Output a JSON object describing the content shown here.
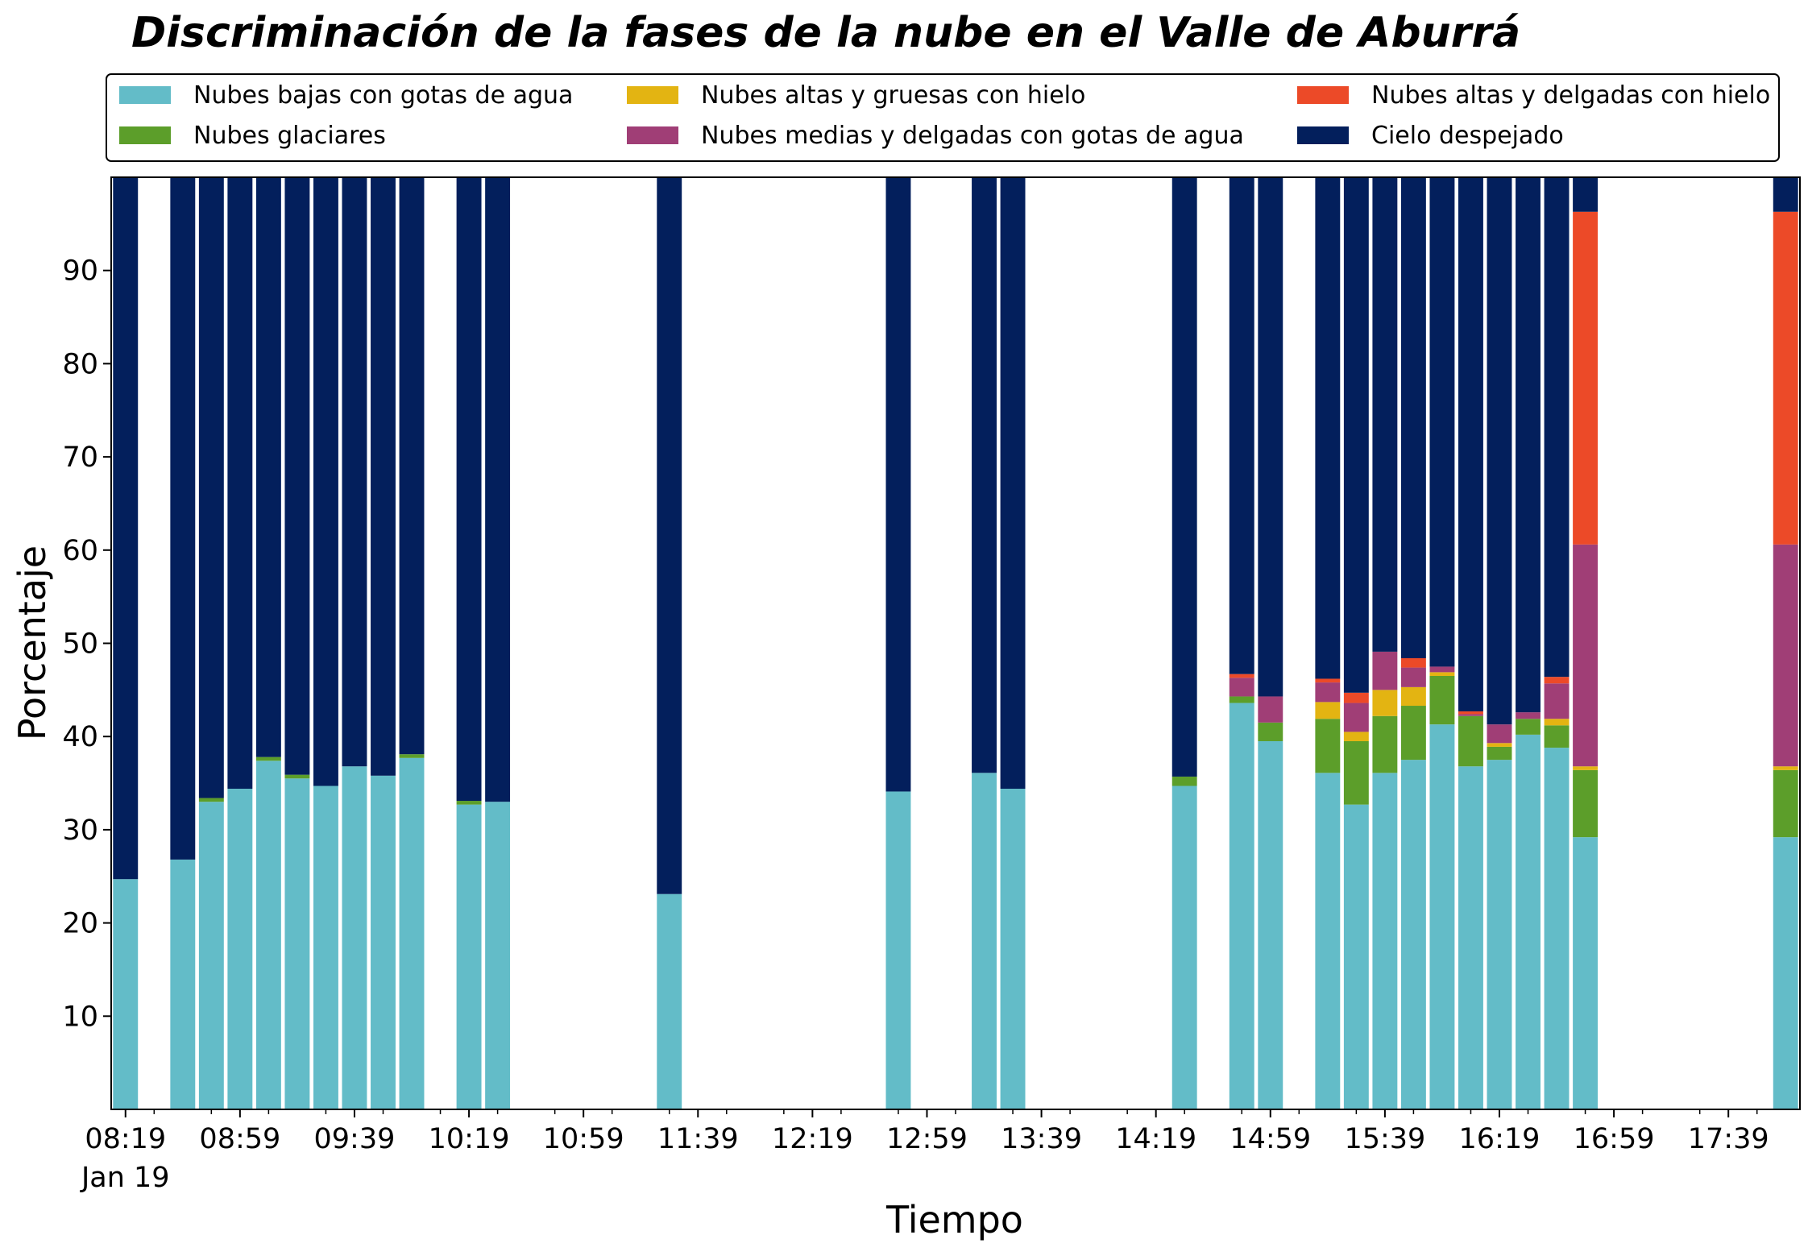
{
  "chart_data": {
    "type": "bar",
    "stacked": true,
    "title": "Discriminación de la fases de la nube en el Valle de Aburrá",
    "xlabel": "Tiempo",
    "ylabel": "Porcentaje",
    "ylim": [
      0,
      100
    ],
    "yticks": [
      10,
      20,
      30,
      40,
      50,
      60,
      70,
      80,
      90
    ],
    "xlim": [
      0,
      59
    ],
    "xtick_labels": [
      {
        "pos": 0,
        "label": "08:19"
      },
      {
        "pos": 4,
        "label": "08:59"
      },
      {
        "pos": 8,
        "label": "09:39"
      },
      {
        "pos": 12,
        "label": "10:19"
      },
      {
        "pos": 16,
        "label": "10:59"
      },
      {
        "pos": 20,
        "label": "11:39"
      },
      {
        "pos": 24,
        "label": "12:19"
      },
      {
        "pos": 28,
        "label": "12:59"
      },
      {
        "pos": 32,
        "label": "13:39"
      },
      {
        "pos": 36,
        "label": "14:19"
      },
      {
        "pos": 40,
        "label": "14:59"
      },
      {
        "pos": 44,
        "label": "15:39"
      },
      {
        "pos": 48,
        "label": "16:19"
      },
      {
        "pos": 52,
        "label": "16:59"
      },
      {
        "pos": 56,
        "label": "17:39"
      }
    ],
    "x_date_label": "Jan 19",
    "grid": false,
    "legend": {
      "placement": "top",
      "columns": 3
    },
    "categories": [
      "08:19",
      "08:39",
      "08:49",
      "08:59",
      "09:09",
      "09:19",
      "09:29",
      "09:39",
      "09:49",
      "09:59",
      "10:19",
      "10:29",
      "11:29",
      "12:49",
      "13:19",
      "13:29",
      "14:19",
      "14:39",
      "14:49",
      "15:09",
      "15:19",
      "15:29",
      "15:39",
      "15:49",
      "15:59",
      "16:09",
      "16:19",
      "16:29",
      "16:39",
      "17:59"
    ],
    "x": [
      0,
      2,
      3,
      4,
      5,
      6,
      7,
      8,
      9,
      10,
      12,
      13,
      19,
      27,
      30,
      31,
      37,
      39,
      40,
      42,
      43,
      44,
      45,
      46,
      47,
      48,
      49,
      50,
      51,
      58
    ],
    "series": [
      {
        "name": "Nubes bajas con gotas de agua",
        "color": "#63BCC8",
        "values": [
          24.7,
          26.8,
          33.0,
          34.4,
          37.4,
          35.5,
          34.7,
          36.8,
          35.8,
          37.7,
          32.7,
          33.0,
          23.1,
          34.1,
          36.1,
          34.4,
          34.7,
          43.6,
          39.5,
          36.1,
          32.7,
          36.1,
          37.5,
          41.3,
          36.8,
          37.5,
          40.2,
          38.8,
          29.2,
          29.2
        ]
      },
      {
        "name": "Nubes glaciares",
        "color": "#5C9E2A",
        "values": [
          0,
          0,
          0.4,
          0,
          0.4,
          0.4,
          0,
          0,
          0,
          0.4,
          0.4,
          0,
          0,
          0,
          0,
          0,
          1.0,
          0.7,
          2.0,
          5.8,
          6.8,
          6.1,
          5.8,
          5.2,
          5.4,
          1.4,
          1.7,
          2.4,
          7.2,
          7.2
        ]
      },
      {
        "name": "Nubes altas y gruesas con hielo",
        "color": "#E3B412",
        "values": [
          0,
          0,
          0,
          0,
          0,
          0,
          0,
          0,
          0,
          0,
          0,
          0,
          0,
          0,
          0,
          0,
          0,
          0,
          0,
          1.8,
          1.0,
          2.8,
          2.0,
          0.4,
          0,
          0.4,
          0,
          0.7,
          0.4,
          0.4
        ]
      },
      {
        "name": "Nubes medias y delgadas con gotas de agua",
        "color": "#A03E76",
        "values": [
          0,
          0,
          0,
          0,
          0,
          0,
          0,
          0,
          0,
          0,
          0,
          0,
          0,
          0,
          0,
          0,
          0,
          2.0,
          2.8,
          2.1,
          3.1,
          4.1,
          2.1,
          0.6,
          0.2,
          2.0,
          0.7,
          3.8,
          23.8,
          23.8
        ]
      },
      {
        "name": "Nubes altas y delgadas con hielo",
        "color": "#EC4A28",
        "values": [
          0,
          0,
          0,
          0,
          0,
          0,
          0,
          0,
          0,
          0,
          0,
          0,
          0,
          0,
          0,
          0,
          0,
          0.4,
          0,
          0.4,
          1.1,
          0,
          1.0,
          0,
          0.3,
          0,
          0,
          0.7,
          35.7,
          35.7
        ]
      },
      {
        "name": "Cielo despejado",
        "color": "#031F5C",
        "values": [
          75.3,
          73.2,
          66.6,
          65.6,
          62.2,
          64.1,
          65.3,
          63.2,
          64.2,
          61.9,
          66.9,
          67.0,
          76.9,
          65.9,
          63.9,
          65.6,
          64.3,
          53.3,
          55.7,
          53.8,
          55.3,
          50.9,
          51.6,
          52.5,
          57.3,
          58.7,
          57.4,
          53.6,
          3.7,
          3.7
        ]
      }
    ]
  }
}
